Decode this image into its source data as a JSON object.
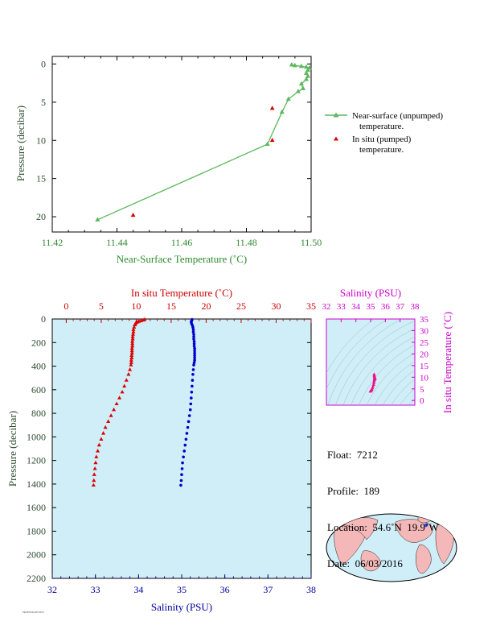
{
  "top_chart": {
    "xlabel": "Near-Surface Temperature (˚C)",
    "ylabel": "Pressure (decibar)",
    "legend": {
      "near_surface": [
        "Near-surface (unpumped)",
        "temperature."
      ],
      "in_situ": [
        "In situ (pumped)",
        "temperature."
      ]
    }
  },
  "main_chart": {
    "temp_axis_label": "In situ Temperature (˚C)",
    "salinity_axis_label": "Salinity (PSU)",
    "ylabel": "Pressure (decibar)"
  },
  "inset": {
    "title": "Salinity (PSU)",
    "ylabel": "In situ Temperature (˚C)"
  },
  "float_info": {
    "float_line": "Float:  7212",
    "profile_line": "Profile:  189",
    "location_line": "Location:  54.6˚N  19.9˚W",
    "date_line": "Date:  06/03/2016"
  },
  "fine_print": "PROFILER-REVIEW",
  "colors": {
    "near_surface": "#5cb85c",
    "in_situ": "#dd0000",
    "salinity": "#0000cc",
    "inset_points": "#ee1188",
    "plot_bg": "#cfeef8",
    "axis_green": "#2e8b2e",
    "axis_red": "#cc0000",
    "axis_blue": "#000099",
    "axis_magenta": "#cc00cc"
  },
  "chart_data": [
    {
      "type": "line",
      "id": "near-surface-profile",
      "xlim": [
        11.42,
        11.5
      ],
      "ylim": [
        22,
        -1
      ],
      "x_ticks": [
        11.42,
        11.44,
        11.46,
        11.48,
        11.5
      ],
      "x_tick_labels": [
        "11.42",
        "11.44",
        "11.46",
        "11.48",
        "11.50"
      ],
      "y_ticks": [
        0,
        5,
        10,
        15,
        20
      ],
      "y_tick_labels": [
        "0",
        "5",
        "10",
        "15",
        "20"
      ],
      "series": [
        {
          "name": "Near-surface (unpumped) temperature.",
          "marker": "triangle",
          "line": true,
          "points": [
            [
              11.494,
              0.1
            ],
            [
              11.495,
              0.2
            ],
            [
              11.497,
              0.3
            ],
            [
              11.4985,
              0.4
            ],
            [
              11.4995,
              0.5
            ],
            [
              11.499,
              0.8
            ],
            [
              11.4985,
              1.2
            ],
            [
              11.499,
              1.6
            ],
            [
              11.4985,
              2.0
            ],
            [
              11.497,
              2.6
            ],
            [
              11.4975,
              3.2
            ],
            [
              11.496,
              3.6
            ],
            [
              11.493,
              4.6
            ],
            [
              11.491,
              6.3
            ],
            [
              11.4865,
              10.5
            ],
            [
              11.434,
              20.4
            ]
          ]
        },
        {
          "name": "In situ (pumped) temperature.",
          "marker": "triangle",
          "line": false,
          "points": [
            [
              11.488,
              5.8
            ],
            [
              11.488,
              10.0
            ],
            [
              11.445,
              19.8
            ]
          ]
        }
      ]
    },
    {
      "type": "scatter",
      "id": "depth-profile",
      "ylim": [
        2200,
        0
      ],
      "y_ticks": [
        0,
        200,
        400,
        600,
        800,
        1000,
        1200,
        1400,
        1600,
        1800,
        2000,
        2200
      ],
      "y_tick_labels": [
        "0",
        "200",
        "400",
        "600",
        "800",
        "1000",
        "1200",
        "1400",
        "1600",
        "1800",
        "2000",
        "2200"
      ],
      "temp_xlim": [
        -2,
        35
      ],
      "temp_ticks": [
        0,
        5,
        10,
        15,
        20,
        25,
        30,
        35
      ],
      "temp_tick_labels": [
        "0",
        "5",
        "10",
        "15",
        "20",
        "25",
        "30",
        "35"
      ],
      "sal_xlim": [
        32,
        38
      ],
      "sal_ticks": [
        32,
        33,
        34,
        35,
        36,
        37,
        38
      ],
      "sal_tick_labels": [
        "32",
        "33",
        "34",
        "35",
        "36",
        "37",
        "38"
      ],
      "temperature": {
        "name": "In situ Temperature (˚C)",
        "points": [
          [
            11.2,
            5
          ],
          [
            11.0,
            10
          ],
          [
            10.7,
            15
          ],
          [
            10.4,
            20
          ],
          [
            10.2,
            25
          ],
          [
            10.0,
            30
          ],
          [
            9.9,
            40
          ],
          [
            9.8,
            50
          ],
          [
            9.7,
            70
          ],
          [
            9.6,
            90
          ],
          [
            9.6,
            110
          ],
          [
            9.55,
            130
          ],
          [
            9.5,
            150
          ],
          [
            9.5,
            170
          ],
          [
            9.45,
            190
          ],
          [
            9.45,
            210
          ],
          [
            9.45,
            230
          ],
          [
            9.4,
            250
          ],
          [
            9.4,
            270
          ],
          [
            9.4,
            290
          ],
          [
            9.35,
            310
          ],
          [
            9.35,
            330
          ],
          [
            9.3,
            350
          ],
          [
            9.3,
            370
          ],
          [
            9.25,
            390
          ],
          [
            9.1,
            430
          ],
          [
            8.9,
            470
          ],
          [
            8.6,
            520
          ],
          [
            8.3,
            570
          ],
          [
            8.0,
            620
          ],
          [
            7.6,
            670
          ],
          [
            7.2,
            720
          ],
          [
            6.8,
            770
          ],
          [
            6.4,
            820
          ],
          [
            6.0,
            870
          ],
          [
            5.6,
            920
          ],
          [
            5.3,
            970
          ],
          [
            5.0,
            1020
          ],
          [
            4.7,
            1070
          ],
          [
            4.5,
            1120
          ],
          [
            4.3,
            1170
          ],
          [
            4.2,
            1220
          ],
          [
            4.1,
            1270
          ],
          [
            4.0,
            1320
          ],
          [
            3.95,
            1370
          ],
          [
            3.9,
            1410
          ]
        ]
      },
      "salinity": {
        "name": "Salinity (PSU)",
        "points": [
          [
            35.24,
            5
          ],
          [
            35.23,
            15
          ],
          [
            35.22,
            25
          ],
          [
            35.23,
            40
          ],
          [
            35.25,
            55
          ],
          [
            35.26,
            70
          ],
          [
            35.27,
            90
          ],
          [
            35.27,
            110
          ],
          [
            35.28,
            130
          ],
          [
            35.28,
            150
          ],
          [
            35.28,
            170
          ],
          [
            35.29,
            190
          ],
          [
            35.29,
            210
          ],
          [
            35.29,
            230
          ],
          [
            35.3,
            250
          ],
          [
            35.3,
            270
          ],
          [
            35.3,
            290
          ],
          [
            35.3,
            310
          ],
          [
            35.3,
            330
          ],
          [
            35.3,
            350
          ],
          [
            35.29,
            370
          ],
          [
            35.28,
            390
          ],
          [
            35.27,
            430
          ],
          [
            35.26,
            470
          ],
          [
            35.25,
            520
          ],
          [
            35.24,
            570
          ],
          [
            35.23,
            620
          ],
          [
            35.22,
            670
          ],
          [
            35.21,
            720
          ],
          [
            35.2,
            770
          ],
          [
            35.18,
            820
          ],
          [
            35.16,
            870
          ],
          [
            35.14,
            920
          ],
          [
            35.12,
            970
          ],
          [
            35.1,
            1020
          ],
          [
            35.08,
            1070
          ],
          [
            35.06,
            1120
          ],
          [
            35.04,
            1170
          ],
          [
            35.02,
            1220
          ],
          [
            35.01,
            1270
          ],
          [
            35.0,
            1320
          ],
          [
            34.99,
            1370
          ],
          [
            34.98,
            1410
          ]
        ]
      }
    },
    {
      "type": "scatter",
      "id": "ts-inset",
      "xlim": [
        32,
        38
      ],
      "ylim": [
        -2,
        35
      ],
      "x_ticks": [
        32,
        33,
        34,
        35,
        36,
        37,
        38
      ],
      "x_tick_labels": [
        "32",
        "33",
        "34",
        "35",
        "36",
        "37",
        "38"
      ],
      "y_ticks": [
        0,
        5,
        10,
        15,
        20,
        25,
        30,
        35
      ],
      "y_tick_labels": [
        "0",
        "5",
        "10",
        "15",
        "20",
        "25",
        "30",
        "35"
      ],
      "points": [
        [
          35.24,
          11.2
        ],
        [
          35.25,
          10.7
        ],
        [
          35.26,
          10.2
        ],
        [
          35.27,
          9.8
        ],
        [
          35.28,
          9.6
        ],
        [
          35.29,
          9.45
        ],
        [
          35.3,
          9.35
        ],
        [
          35.28,
          9.25
        ],
        [
          35.26,
          8.9
        ],
        [
          35.24,
          8.3
        ],
        [
          35.22,
          7.6
        ],
        [
          35.2,
          6.8
        ],
        [
          35.16,
          6.0
        ],
        [
          35.12,
          5.3
        ],
        [
          35.08,
          4.7
        ],
        [
          35.04,
          4.3
        ],
        [
          35.01,
          4.1
        ],
        [
          34.98,
          3.9
        ]
      ]
    }
  ],
  "map": {
    "float_location": [
      54.6,
      -19.9
    ]
  }
}
